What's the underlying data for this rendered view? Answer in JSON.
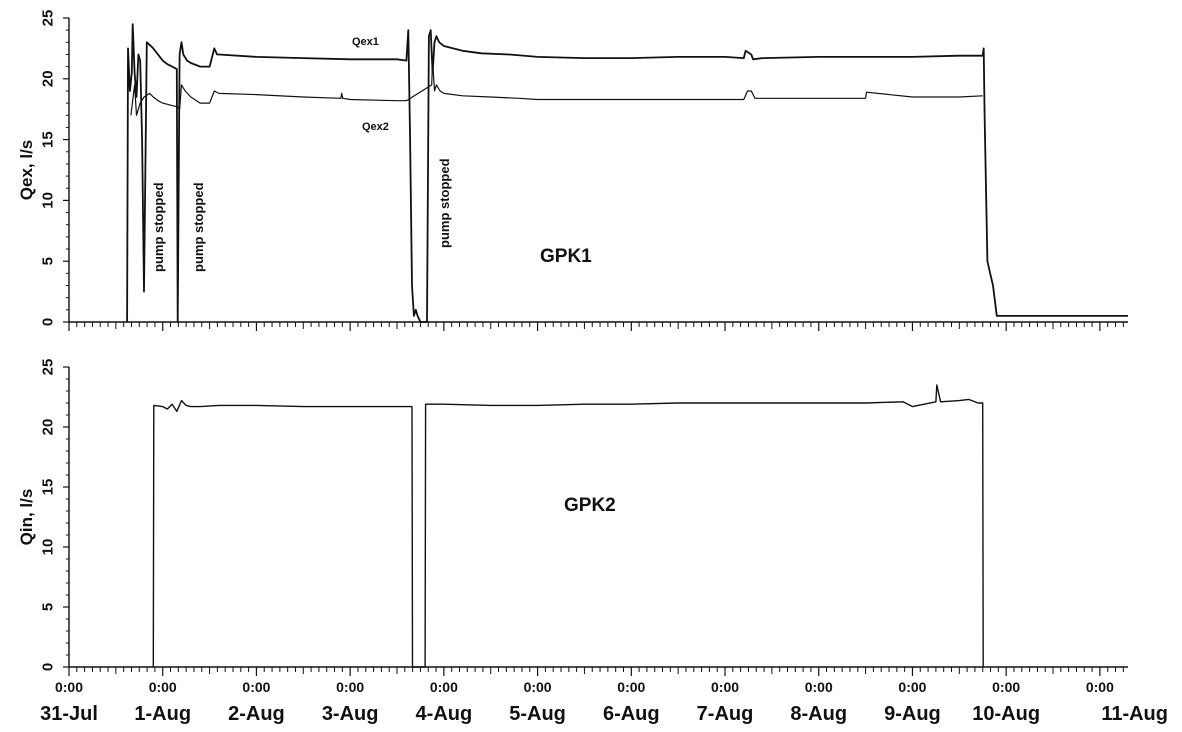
{
  "chart_data": [
    {
      "type": "line",
      "panel_label": "GPK1",
      "ylabel": "Qex, l/s",
      "ylim": [
        0,
        25
      ],
      "yticks": [
        0,
        5,
        10,
        15,
        20,
        25
      ],
      "grid": false,
      "x_unit": "days since 31-Jul 0:00",
      "series": [
        {
          "name": "Qex1",
          "x": [
            0.62,
            0.63,
            0.65,
            0.67,
            0.68,
            0.7,
            0.72,
            0.74,
            0.76,
            0.78,
            0.8,
            0.83,
            0.86,
            0.9,
            0.95,
            1.0,
            1.05,
            1.1,
            1.15,
            1.16,
            1.18,
            1.2,
            1.22,
            1.26,
            1.3,
            1.4,
            1.5,
            1.55,
            1.58,
            1.6,
            2.0,
            2.5,
            3.0,
            3.5,
            3.6,
            3.62,
            3.64,
            3.66,
            3.68,
            3.7,
            3.72,
            3.75,
            3.78,
            3.8,
            3.82,
            3.84,
            3.86,
            3.88,
            3.9,
            3.92,
            3.95,
            4.0,
            4.1,
            4.2,
            4.4,
            4.7,
            5.0,
            5.5,
            6.0,
            6.5,
            7.0,
            7.2,
            7.22,
            7.28,
            7.3,
            7.4,
            8.0,
            8.5,
            9.0,
            9.5,
            9.75,
            9.76,
            9.77,
            9.8,
            9.83,
            9.86,
            9.9,
            10.0,
            10.5,
            11.0,
            11.3
          ],
          "y": [
            0,
            22.5,
            19,
            20.5,
            24.5,
            20.5,
            18.5,
            22.0,
            21.5,
            15.0,
            2.5,
            23.0,
            22.8,
            22.5,
            22.0,
            21.5,
            21.2,
            21.0,
            20.8,
            0,
            22.0,
            23.0,
            22.0,
            21.5,
            21.3,
            21.0,
            21.0,
            22.5,
            22.0,
            22.0,
            21.8,
            21.7,
            21.6,
            21.6,
            21.5,
            24.0,
            15.0,
            3.0,
            0.5,
            1.0,
            0.5,
            0,
            0,
            0,
            0,
            23.5,
            24.0,
            20.5,
            23.0,
            23.5,
            23.0,
            22.7,
            22.5,
            22.3,
            22.1,
            22.0,
            21.8,
            21.7,
            21.7,
            21.8,
            21.8,
            21.7,
            22.3,
            22.0,
            21.6,
            21.7,
            21.8,
            21.8,
            21.8,
            21.9,
            21.9,
            22.5,
            17.0,
            5.0,
            4.0,
            3.0,
            0.5,
            0.5,
            0.5,
            0.5,
            0.5
          ]
        },
        {
          "name": "Qex2",
          "x": [
            0.66,
            0.7,
            0.72,
            0.76,
            0.8,
            0.86,
            0.9,
            0.95,
            1.0,
            1.1,
            1.16,
            1.18,
            1.2,
            1.24,
            1.3,
            1.4,
            1.5,
            1.55,
            1.6,
            2.0,
            2.5,
            2.9,
            2.91,
            2.92,
            3.0,
            3.5,
            3.6,
            3.87,
            3.88,
            3.9,
            3.92,
            3.96,
            4.0,
            4.2,
            4.5,
            4.8,
            5.0,
            5.5,
            5.8,
            6.0,
            6.5,
            7.0,
            7.2,
            7.24,
            7.28,
            7.32,
            7.5,
            8.0,
            8.5,
            8.51,
            9.0,
            9.5,
            9.75
          ],
          "y": [
            17.0,
            19.5,
            17.0,
            18.0,
            18.5,
            18.8,
            18.5,
            18.2,
            18.0,
            17.8,
            17.7,
            17.5,
            19.5,
            19.0,
            18.5,
            18.0,
            18.0,
            19.0,
            18.8,
            18.7,
            18.5,
            18.4,
            18.8,
            18.4,
            18.3,
            18.2,
            18.2,
            19.5,
            21.5,
            19.0,
            19.5,
            19.0,
            18.8,
            18.6,
            18.5,
            18.4,
            18.3,
            18.3,
            18.3,
            18.3,
            18.3,
            18.3,
            18.3,
            19.0,
            19.0,
            18.4,
            18.4,
            18.4,
            18.4,
            18.9,
            18.5,
            18.5,
            18.6
          ]
        }
      ],
      "annotations": [
        "pump stopped",
        "pump stopped",
        "pump stopped"
      ]
    },
    {
      "type": "line",
      "panel_label": "GPK2",
      "ylabel": "Qin, l/s",
      "ylim": [
        0,
        25
      ],
      "yticks": [
        0,
        5,
        10,
        15,
        20,
        25
      ],
      "grid": false,
      "x_unit": "days since 31-Jul 0:00",
      "series": [
        {
          "name": "",
          "x": [
            0.9,
            0.905,
            1.0,
            1.05,
            1.1,
            1.15,
            1.2,
            1.25,
            1.3,
            1.4,
            1.6,
            2.0,
            2.5,
            3.0,
            3.66,
            3.665,
            3.8,
            3.805,
            4.0,
            4.5,
            5.0,
            5.5,
            6.0,
            6.5,
            7.0,
            7.5,
            8.0,
            8.5,
            8.9,
            9.0,
            9.25,
            9.26,
            9.3,
            9.5,
            9.6,
            9.7,
            9.75,
            9.755
          ],
          "y": [
            0,
            21.8,
            21.7,
            21.5,
            21.9,
            21.3,
            22.2,
            21.8,
            21.7,
            21.7,
            21.8,
            21.8,
            21.7,
            21.7,
            21.7,
            0,
            0,
            21.9,
            21.9,
            21.8,
            21.8,
            21.9,
            21.9,
            22.0,
            22.0,
            22.0,
            22.0,
            22.0,
            22.1,
            21.7,
            22.1,
            23.5,
            22.1,
            22.2,
            22.3,
            22.0,
            22.0,
            0
          ]
        }
      ]
    }
  ],
  "xaxis": {
    "tick_times": [
      "0:00",
      "0:00",
      "0:00",
      "0:00",
      "0:00",
      "0:00",
      "0:00",
      "0:00",
      "0:00",
      "0:00",
      "0:00",
      "0:00"
    ],
    "tick_dates": [
      "31-Jul",
      "1-Aug",
      "2-Aug",
      "3-Aug",
      "4-Aug",
      "5-Aug",
      "6-Aug",
      "7-Aug",
      "8-Aug",
      "9-Aug",
      "10-Aug",
      "11-Aug"
    ],
    "xlim": [
      0,
      11.3
    ]
  }
}
